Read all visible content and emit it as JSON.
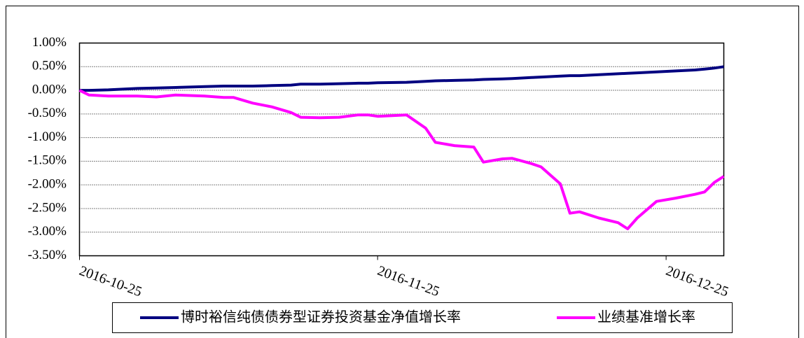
{
  "chart_data": {
    "type": "line",
    "x": [
      "2016-10-25",
      "2016-10-26",
      "2016-10-28",
      "2016-10-31",
      "2016-11-02",
      "2016-11-04",
      "2016-11-07",
      "2016-11-09",
      "2016-11-10",
      "2016-11-12",
      "2016-11-14",
      "2016-11-16",
      "2016-11-17",
      "2016-11-19",
      "2016-11-21",
      "2016-11-23",
      "2016-11-24",
      "2016-11-25",
      "2016-11-28",
      "2016-11-30",
      "2016-12-01",
      "2016-12-03",
      "2016-12-05",
      "2016-12-06",
      "2016-12-08",
      "2016-12-09",
      "2016-12-11",
      "2016-12-12",
      "2016-12-14",
      "2016-12-15",
      "2016-12-16",
      "2016-12-18",
      "2016-12-20",
      "2016-12-21",
      "2016-12-22",
      "2016-12-24",
      "2016-12-26",
      "2016-12-28",
      "2016-12-29",
      "2016-12-30",
      "2016-12-31"
    ],
    "series": [
      {
        "name": "博时裕信纯债债券型证券投资基金净值增长率",
        "color": "#000080",
        "values": [
          0,
          0,
          0.01,
          0.04,
          0.05,
          0.06,
          0.08,
          0.09,
          0.09,
          0.09,
          0.1,
          0.11,
          0.13,
          0.13,
          0.14,
          0.15,
          0.15,
          0.16,
          0.17,
          0.19,
          0.2,
          0.21,
          0.22,
          0.23,
          0.24,
          0.25,
          0.27,
          0.28,
          0.3,
          0.31,
          0.31,
          0.33,
          0.35,
          0.36,
          0.37,
          0.39,
          0.41,
          0.43,
          0.45,
          0.47,
          0.5
        ]
      },
      {
        "name": "业绩基准增长率",
        "color": "#ff00ff",
        "values": [
          0,
          -0.1,
          -0.12,
          -0.12,
          -0.14,
          -0.1,
          -0.12,
          -0.15,
          -0.15,
          -0.27,
          -0.35,
          -0.47,
          -0.57,
          -0.58,
          -0.57,
          -0.52,
          -0.52,
          -0.55,
          -0.52,
          -0.8,
          -1.1,
          -1.17,
          -1.2,
          -1.52,
          -1.45,
          -1.44,
          -1.55,
          -1.62,
          -1.98,
          -2.6,
          -2.57,
          -2.7,
          -2.8,
          -2.93,
          -2.7,
          -2.35,
          -2.28,
          -2.2,
          -2.15,
          -1.95,
          -1.82
        ]
      }
    ],
    "xlim": [
      "2016-10-25",
      "2016-12-31"
    ],
    "xticks": [
      "2016-10-25",
      "2016-11-25",
      "2016-12-25"
    ],
    "ylim": [
      -3.5,
      1
    ],
    "yticks": [
      {
        "value": -3.5,
        "label": "-3.50%"
      },
      {
        "value": -3,
        "label": "-3.00%"
      },
      {
        "value": -2.5,
        "label": "-2.50%"
      },
      {
        "value": -2,
        "label": "-2.00%"
      },
      {
        "value": -1.5,
        "label": "-1.50%"
      },
      {
        "value": -1,
        "label": "-1.00%"
      },
      {
        "value": -0.5,
        "label": "-0.50%"
      },
      {
        "value": 0,
        "label": "0.00%"
      },
      {
        "value": 0.5,
        "label": "0.50%"
      },
      {
        "value": 1,
        "label": "1.00%"
      }
    ],
    "grid": true,
    "legend": "bottom"
  }
}
